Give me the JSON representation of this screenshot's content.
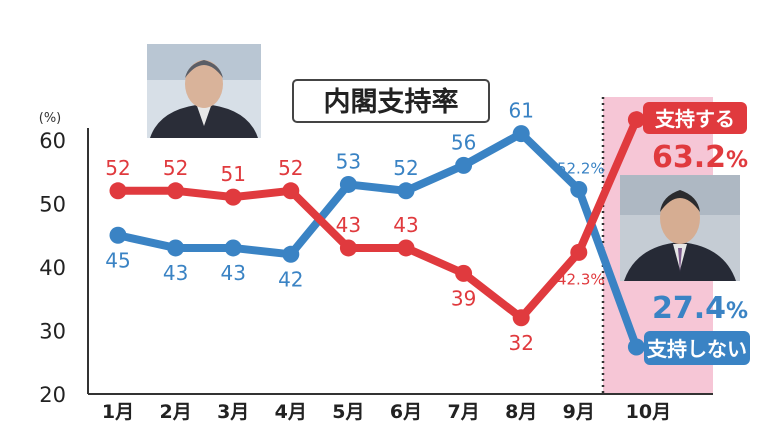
{
  "chart_data": {
    "type": "line",
    "title": "内閣支持率",
    "y_unit": "(%)",
    "xlabel": "",
    "ylabel": "",
    "ylim": [
      20,
      65
    ],
    "yticks": [
      "20",
      "30",
      "40",
      "50",
      "60"
    ],
    "categories": [
      "1月",
      "2月",
      "3月",
      "4月",
      "5月",
      "6月",
      "7月",
      "8月",
      "9月",
      "10月"
    ],
    "series": [
      {
        "name": "支持する",
        "color": "#e03a3e",
        "values": [
          52,
          52,
          51,
          52,
          43,
          43,
          39,
          32,
          42.3,
          63.2
        ],
        "labels": [
          "52",
          "52",
          "51",
          "52",
          "43",
          "43",
          "39",
          "32",
          "42.3%",
          ""
        ]
      },
      {
        "name": "支持しない",
        "color": "#3a83c4",
        "values": [
          45,
          43,
          43,
          42,
          53,
          52,
          56,
          61,
          52.2,
          27.4
        ],
        "labels": [
          "45",
          "43",
          "43",
          "42",
          "53",
          "52",
          "56",
          "61",
          "52.2%",
          ""
        ]
      }
    ],
    "callouts": {
      "support": {
        "label": "支持する",
        "value": "63.2",
        "unit": "%"
      },
      "nonsupport": {
        "label": "支持しない",
        "value": "27.4",
        "unit": "%"
      }
    },
    "highlight_month": "10月",
    "grid": false,
    "photos": [
      "suga-portrait-photo",
      "kishida-portrait-photo"
    ]
  }
}
